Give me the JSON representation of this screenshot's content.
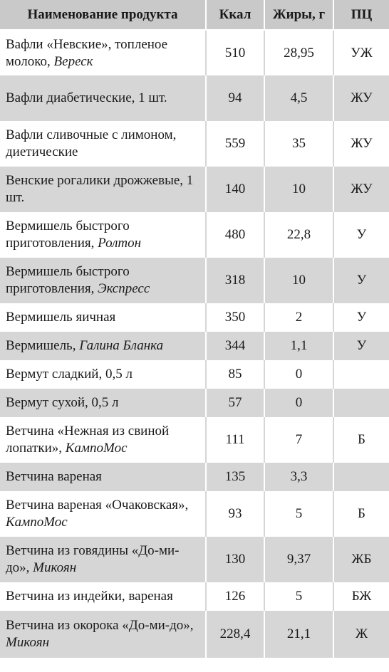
{
  "table": {
    "headers": {
      "name": "Наименование продукта",
      "kcal": "Ккал",
      "fat": "Жиры, г",
      "pc": "ПЦ"
    },
    "rows": [
      {
        "name_a": "Вафли «Невские», топленое молоко, ",
        "name_b": "Вереск",
        "kcal": "510",
        "fat": "28,95",
        "pc": "УЖ"
      },
      {
        "name_a": "Вафли диабетические, 1 шт.",
        "name_b": "",
        "kcal": "94",
        "fat": "4,5",
        "pc": "ЖУ"
      },
      {
        "name_a": "Вафли сливочные с лимоном, диетические",
        "name_b": "",
        "kcal": "559",
        "fat": "35",
        "pc": "ЖУ"
      },
      {
        "name_a": "Венские рогалики дрожжевые, 1 шт.",
        "name_b": "",
        "kcal": "140",
        "fat": "10",
        "pc": "ЖУ"
      },
      {
        "name_a": "Вермишель быстрого приготовления, ",
        "name_b": "Ролтон",
        "kcal": "480",
        "fat": "22,8",
        "pc": "У"
      },
      {
        "name_a": "Вермишель быстрого приготовления, ",
        "name_b": "Экспресс",
        "kcal": "318",
        "fat": "10",
        "pc": "У"
      },
      {
        "name_a": "Вермишель яичная",
        "name_b": "",
        "kcal": "350",
        "fat": "2",
        "pc": "У"
      },
      {
        "name_a": "Вермишель, ",
        "name_b": "Галина Бланка",
        "kcal": "344",
        "fat": "1,1",
        "pc": "У"
      },
      {
        "name_a": "Вермут сладкий, 0,5 л",
        "name_b": "",
        "kcal": "85",
        "fat": "0",
        "pc": ""
      },
      {
        "name_a": "Вермут сухой, 0,5 л",
        "name_b": "",
        "kcal": "57",
        "fat": "0",
        "pc": ""
      },
      {
        "name_a": "Ветчина «Нежная из свиной лопатки», ",
        "name_b": "КампоМос",
        "kcal": "111",
        "fat": "7",
        "pc": "Б"
      },
      {
        "name_a": "Ветчина вареная",
        "name_b": "",
        "kcal": "135",
        "fat": "3,3",
        "pc": ""
      },
      {
        "name_a": "Ветчина вареная «Очаковская», ",
        "name_b": "КампоМос",
        "kcal": "93",
        "fat": "5",
        "pc": "Б"
      },
      {
        "name_a": "Ветчина из говядины «До-ми-до», ",
        "name_b": "Микоян",
        "kcal": "130",
        "fat": "9,37",
        "pc": "ЖБ"
      },
      {
        "name_a": "Ветчина из индейки, вареная",
        "name_b": "",
        "kcal": "126",
        "fat": "5",
        "pc": "БЖ"
      },
      {
        "name_a": "Ветчина из окорока «До-ми-до», ",
        "name_b": "Микоян",
        "kcal": "228,4",
        "fat": "21,1",
        "pc": "Ж"
      }
    ]
  }
}
